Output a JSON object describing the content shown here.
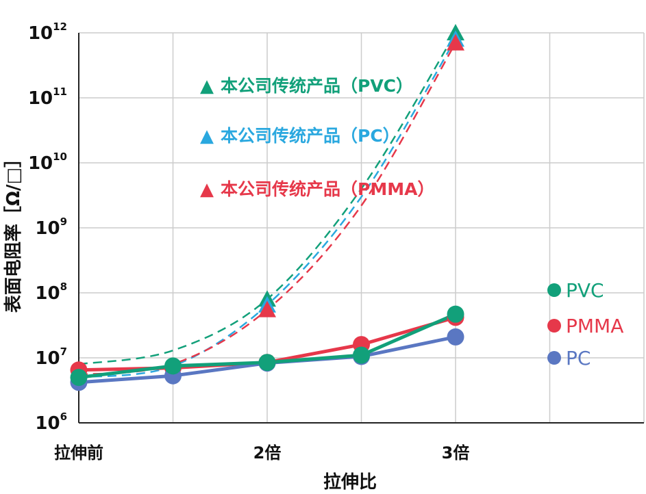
{
  "chart_data": {
    "type": "line",
    "xlabel": "拉伸比",
    "ylabel": "表面电阻率［Ω/□］",
    "yscale": "log",
    "ylim": [
      1000000.0,
      1000000000000.0
    ],
    "y_ticks": [
      {
        "base": "10",
        "exp": "6"
      },
      {
        "base": "10",
        "exp": "7"
      },
      {
        "base": "10",
        "exp": "8"
      },
      {
        "base": "10",
        "exp": "9"
      },
      {
        "base": "10",
        "exp": "10"
      },
      {
        "base": "10",
        "exp": "11"
      },
      {
        "base": "10",
        "exp": "12"
      }
    ],
    "x_ticks": [
      "拉伸前",
      "2倍",
      "3倍"
    ],
    "x_tick_values": [
      1,
      2,
      3
    ],
    "xlim": [
      1,
      4
    ],
    "grid": true,
    "legend": {
      "placement": "top-center",
      "entries": [
        {
          "marker": "▲",
          "label": "本公司传统产品（PVC）",
          "color": "#12a07a"
        },
        {
          "marker": "▲",
          "label": "本公司传统产品（PC）",
          "color": "#2aa8df"
        },
        {
          "marker": "▲",
          "label": "本公司传统产品（PMMA）",
          "color": "#e6384a"
        }
      ]
    },
    "series_labels": [
      {
        "marker": "●",
        "label": "PVC",
        "color": "#12a07a"
      },
      {
        "marker": "●",
        "label": "PMMA",
        "color": "#e6384a"
      },
      {
        "marker": "●",
        "label": "PC",
        "color": "#5a77c2"
      }
    ],
    "series": [
      {
        "name": "PMMA",
        "style": "solid",
        "marker": "circle",
        "color": "#e6384a",
        "x": [
          1,
          1.5,
          2,
          2.5,
          3
        ],
        "y": [
          6500000.0,
          7000000.0,
          8500000.0,
          16000000.0,
          42000000.0
        ]
      },
      {
        "name": "PC",
        "style": "solid",
        "marker": "circle",
        "color": "#5a77c2",
        "x": [
          1,
          1.5,
          2,
          2.5,
          3
        ],
        "y": [
          4200000.0,
          5300000.0,
          8300000.0,
          10500000.0,
          21000000.0
        ]
      },
      {
        "name": "PVC",
        "style": "solid",
        "marker": "circle",
        "color": "#12a07a",
        "x": [
          1,
          1.5,
          2,
          2.5,
          3
        ],
        "y": [
          5000000.0,
          7500000.0,
          8500000.0,
          11000000.0,
          47000000.0
        ]
      },
      {
        "name": "本公司传统产品（PVC）",
        "style": "dashed",
        "marker": "triangle",
        "color": "#12a07a",
        "x": [
          1,
          1.5,
          2,
          2.5,
          3
        ],
        "y": [
          8000000.0,
          13000000.0,
          80000000.0,
          4000000000.0,
          1000000000000.0
        ]
      },
      {
        "name": "本公司传统产品（PC）",
        "style": "dashed",
        "marker": "triangle",
        "color": "#2aa8df",
        "x": [
          1,
          1.5,
          2,
          2.5,
          3
        ],
        "y": [
          5000000.0,
          7500000.0,
          65000000.0,
          3000000000.0,
          800000000000.0
        ]
      },
      {
        "name": "本公司传统产品（PMMA）",
        "style": "dashed",
        "marker": "triangle",
        "color": "#e6384a",
        "x": [
          1,
          1.5,
          2,
          2.5,
          3
        ],
        "y": [
          5500000.0,
          8000000.0,
          55000000.0,
          2200000000.0,
          700000000000.0
        ]
      }
    ]
  }
}
